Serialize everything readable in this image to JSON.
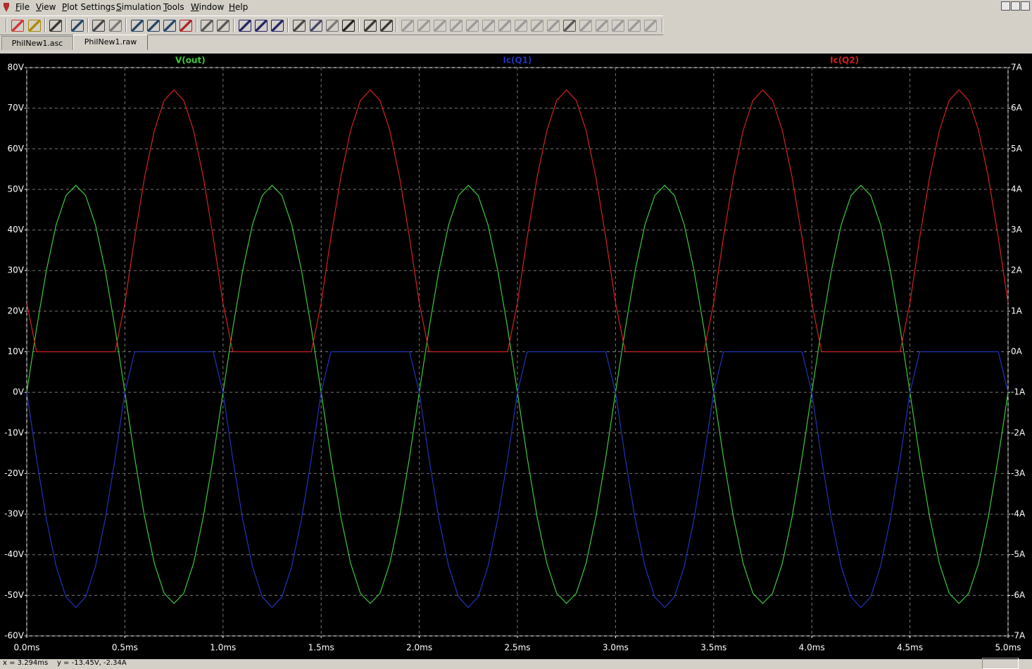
{
  "menu": [
    "File",
    "View",
    "Plot Settings",
    "Simulation",
    "Tools",
    "Window",
    "Help"
  ],
  "tabs": [
    "PhilNew1.asc",
    "PhilNew1.raw"
  ],
  "status": "x = 3.294ms    y = -13.45V, -2.34A",
  "chart_data": {
    "type": "line",
    "x": [
      0,
      0.05,
      0.1,
      0.15,
      0.2,
      0.25,
      0.3,
      0.35,
      0.4,
      0.45,
      0.5,
      0.55,
      0.6,
      0.65,
      0.7,
      0.75,
      0.8,
      0.85,
      0.9,
      0.95,
      1,
      1.05,
      1.1,
      1.15,
      1.2,
      1.25,
      1.3,
      1.35,
      1.4,
      1.45,
      1.5,
      1.55,
      1.6,
      1.65,
      1.7,
      1.75,
      1.8,
      1.85,
      1.9,
      1.95,
      2,
      2.05,
      2.1,
      2.15,
      2.2,
      2.25,
      2.3,
      2.35,
      2.4,
      2.45,
      2.5,
      2.55,
      2.6,
      2.65,
      2.7,
      2.75,
      2.8,
      2.85,
      2.9,
      2.95,
      3,
      3.05,
      3.1,
      3.15,
      3.2,
      3.25,
      3.3,
      3.35,
      3.4,
      3.45,
      3.5,
      3.55,
      3.6,
      3.65,
      3.7,
      3.75,
      3.8,
      3.85,
      3.9,
      3.95,
      4,
      4.05,
      4.1,
      4.15,
      4.2,
      4.25,
      4.3,
      4.35,
      4.4,
      4.45,
      4.5,
      4.55,
      4.6,
      4.65,
      4.7,
      4.75,
      4.8,
      4.85,
      4.9,
      4.95,
      5
    ],
    "series": [
      {
        "name": "V(out)",
        "color": "#3cc83c",
        "axis": "y",
        "values": [
          0,
          15.8,
          30.0,
          41.3,
          48.5,
          51,
          48.5,
          41.3,
          30.0,
          15.8,
          0,
          -16.1,
          -30.6,
          -42.1,
          -49.5,
          -52,
          -49.5,
          -42.1,
          -30.6,
          -16.1,
          0,
          15.8,
          30.0,
          41.3,
          48.5,
          51,
          48.5,
          41.3,
          30.0,
          15.8,
          0,
          -16.1,
          -30.6,
          -42.1,
          -49.5,
          -52,
          -49.5,
          -42.1,
          -30.6,
          -16.1,
          0,
          15.8,
          30.0,
          41.3,
          48.5,
          51,
          48.5,
          41.3,
          30.0,
          15.8,
          0,
          -16.1,
          -30.6,
          -42.1,
          -49.5,
          -52,
          -49.5,
          -42.1,
          -30.6,
          -16.1,
          0,
          15.8,
          30.0,
          41.3,
          48.5,
          51,
          48.5,
          41.3,
          30.0,
          15.8,
          0,
          -16.1,
          -30.6,
          -42.1,
          -49.5,
          -52,
          -49.5,
          -42.1,
          -30.6,
          -16.1,
          0,
          15.8,
          30.0,
          41.3,
          48.5,
          51,
          48.5,
          41.3,
          30.0,
          15.8,
          0,
          -16.1,
          -30.6,
          -42.1,
          -49.5,
          -52,
          -49.5,
          -42.1,
          -30.6,
          -16.1,
          0
        ]
      },
      {
        "name": "Ic(Q1)",
        "color": "#2233b8",
        "axis": "y2",
        "values": [
          -1,
          -2.64,
          -4.12,
          -5.29,
          -6.04,
          -6.3,
          -6.04,
          -5.29,
          -4.12,
          -2.64,
          -1,
          0,
          0,
          0,
          0,
          0,
          0,
          0,
          0,
          0,
          -1,
          -2.64,
          -4.12,
          -5.29,
          -6.04,
          -6.3,
          -6.04,
          -5.29,
          -4.12,
          -2.64,
          -1,
          0,
          0,
          0,
          0,
          0,
          0,
          0,
          0,
          0,
          -1,
          -2.64,
          -4.12,
          -5.29,
          -6.04,
          -6.3,
          -6.04,
          -5.29,
          -4.12,
          -2.64,
          -1,
          0,
          0,
          0,
          0,
          0,
          0,
          0,
          0,
          0,
          -1,
          -2.64,
          -4.12,
          -5.29,
          -6.04,
          -6.3,
          -6.04,
          -5.29,
          -4.12,
          -2.64,
          -1,
          0,
          0,
          0,
          0,
          0,
          0,
          0,
          0,
          0,
          -1,
          -2.64,
          -4.12,
          -5.29,
          -6.04,
          -6.3,
          -6.04,
          -5.29,
          -4.12,
          -2.64,
          -1,
          0,
          0,
          0,
          0,
          0,
          0,
          0,
          0,
          0,
          -1
        ]
      },
      {
        "name": "Ic(Q2)",
        "color": "#d42222",
        "axis": "y2",
        "values": [
          1.2,
          0,
          0,
          0,
          0,
          0,
          0,
          0,
          0,
          0,
          1.2,
          2.82,
          4.29,
          5.45,
          6.19,
          6.45,
          6.19,
          5.45,
          4.29,
          2.82,
          1.2,
          0,
          0,
          0,
          0,
          0,
          0,
          0,
          0,
          0,
          1.2,
          2.82,
          4.29,
          5.45,
          6.19,
          6.45,
          6.19,
          5.45,
          4.29,
          2.82,
          1.2,
          0,
          0,
          0,
          0,
          0,
          0,
          0,
          0,
          0,
          1.2,
          2.82,
          4.29,
          5.45,
          6.19,
          6.45,
          6.19,
          5.45,
          4.29,
          2.82,
          1.2,
          0,
          0,
          0,
          0,
          0,
          0,
          0,
          0,
          0,
          1.2,
          2.82,
          4.29,
          5.45,
          6.19,
          6.45,
          6.19,
          5.45,
          4.29,
          2.82,
          1.2,
          0,
          0,
          0,
          0,
          0,
          0,
          0,
          0,
          0,
          1.2,
          2.82,
          4.29,
          5.45,
          6.19,
          6.45,
          6.19,
          5.45,
          4.29,
          2.82,
          1.2
        ]
      }
    ],
    "xlim": [
      0,
      5
    ],
    "xticks": [
      {
        "value": 0,
        "label": "0.0ms"
      },
      {
        "value": 0.5,
        "label": "0.5ms"
      },
      {
        "value": 1,
        "label": "1.0ms"
      },
      {
        "value": 1.5,
        "label": "1.5ms"
      },
      {
        "value": 2,
        "label": "2.0ms"
      },
      {
        "value": 2.5,
        "label": "2.5ms"
      },
      {
        "value": 3,
        "label": "3.0ms"
      },
      {
        "value": 3.5,
        "label": "3.5ms"
      },
      {
        "value": 4,
        "label": "4.0ms"
      },
      {
        "value": 4.5,
        "label": "4.5ms"
      },
      {
        "value": 5,
        "label": "5.0ms"
      }
    ],
    "ylim": [
      -60,
      80
    ],
    "yticks": [
      {
        "value": 80,
        "label": "80V"
      },
      {
        "value": 70,
        "label": "70V"
      },
      {
        "value": 60,
        "label": "60V"
      },
      {
        "value": 50,
        "label": "50V"
      },
      {
        "value": 40,
        "label": "40V"
      },
      {
        "value": 30,
        "label": "30V"
      },
      {
        "value": 20,
        "label": "20V"
      },
      {
        "value": 10,
        "label": "10V"
      },
      {
        "value": 0,
        "label": "0V"
      },
      {
        "value": -10,
        "label": "-10V"
      },
      {
        "value": -20,
        "label": "-20V"
      },
      {
        "value": -30,
        "label": "-30V"
      },
      {
        "value": -40,
        "label": "-40V"
      },
      {
        "value": -50,
        "label": "-50V"
      },
      {
        "value": -60,
        "label": "-60V"
      }
    ],
    "y2lim": [
      -7,
      7
    ],
    "y2ticks": [
      {
        "value": 7,
        "label": "7A"
      },
      {
        "value": 6,
        "label": "6A"
      },
      {
        "value": 5,
        "label": "5A"
      },
      {
        "value": 4,
        "label": "4A"
      },
      {
        "value": 3,
        "label": "3A"
      },
      {
        "value": 2,
        "label": "2A"
      },
      {
        "value": 1,
        "label": "1A"
      },
      {
        "value": 0,
        "label": "0A"
      },
      {
        "value": -1,
        "label": "-1A"
      },
      {
        "value": -2,
        "label": "-2A"
      },
      {
        "value": -3,
        "label": "-3A"
      },
      {
        "value": -4,
        "label": "-4A"
      },
      {
        "value": -5,
        "label": "-5A"
      },
      {
        "value": -6,
        "label": "-6A"
      },
      {
        "value": -7,
        "label": "-7A"
      }
    ],
    "grid": true
  }
}
